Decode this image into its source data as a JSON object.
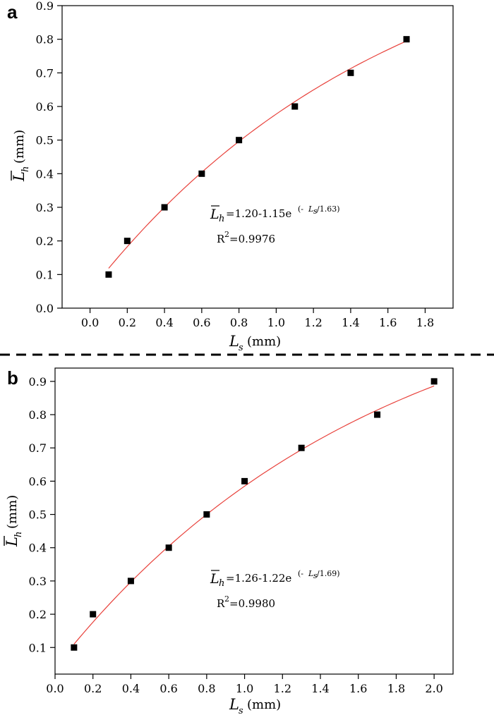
{
  "chart_data": [
    {
      "panel": "a",
      "type": "scatter",
      "x": [
        0.1,
        0.2,
        0.4,
        0.6,
        0.8,
        1.1,
        1.4,
        1.7
      ],
      "y": [
        0.1,
        0.2,
        0.3,
        0.4,
        0.5,
        0.6,
        0.7,
        0.8
      ],
      "fit": {
        "a": 1.2,
        "b": 1.15,
        "c": 1.63,
        "x_range": [
          0.1,
          1.7
        ],
        "color": "#e8403a"
      },
      "marker_color": "#000000",
      "xlim": [
        -0.15,
        1.95
      ],
      "ylim": [
        0.0,
        0.9
      ],
      "xticks": [
        "0.0",
        "0.2",
        "0.4",
        "0.6",
        "0.8",
        "1.0",
        "1.2",
        "1.4",
        "1.6",
        "1.8"
      ],
      "xtick_values": [
        0.0,
        0.2,
        0.4,
        0.6,
        0.8,
        1.0,
        1.2,
        1.4,
        1.6,
        1.8
      ],
      "yticks": [
        "0.0",
        "0.1",
        "0.2",
        "0.3",
        "0.4",
        "0.5",
        "0.6",
        "0.7",
        "0.8",
        "0.9"
      ],
      "ytick_values": [
        0.0,
        0.1,
        0.2,
        0.3,
        0.4,
        0.5,
        0.6,
        0.7,
        0.8,
        0.9
      ],
      "xlabel": {
        "symbol": "L",
        "sub": "s",
        "unit": "(mm)"
      },
      "ylabel": {
        "symbol": "L",
        "sub": "h",
        "unit": "(mm)"
      },
      "equation": {
        "symbol": "L",
        "sub": "h",
        "text": "=1.20-1.15e",
        "exp_open": "(-",
        "exp_symbol": "L",
        "exp_sub": "s",
        "exp_close": "/1.63)"
      },
      "r2": {
        "base": "R",
        "sup": "2",
        "value": "=0.9976"
      }
    },
    {
      "panel": "b",
      "type": "scatter",
      "x": [
        0.1,
        0.2,
        0.4,
        0.6,
        0.8,
        1.0,
        1.3,
        1.7,
        2.0
      ],
      "y": [
        0.1,
        0.2,
        0.3,
        0.4,
        0.5,
        0.6,
        0.7,
        0.8,
        0.9
      ],
      "fit": {
        "a": 1.26,
        "b": 1.22,
        "c": 1.69,
        "x_range": [
          0.1,
          2.0
        ],
        "color": "#e8403a"
      },
      "marker_color": "#000000",
      "xlim": [
        0.0,
        2.1
      ],
      "ylim": [
        0.02,
        0.94
      ],
      "xticks": [
        "0.0",
        "0.2",
        "0.4",
        "0.6",
        "0.8",
        "1.0",
        "1.2",
        "1.4",
        "1.6",
        "1.8",
        "2.0"
      ],
      "xtick_values": [
        0.0,
        0.2,
        0.4,
        0.6,
        0.8,
        1.0,
        1.2,
        1.4,
        1.6,
        1.8,
        2.0
      ],
      "yticks": [
        "0.1",
        "0.2",
        "0.3",
        "0.4",
        "0.5",
        "0.6",
        "0.7",
        "0.8",
        "0.9"
      ],
      "ytick_values": [
        0.1,
        0.2,
        0.3,
        0.4,
        0.5,
        0.6,
        0.7,
        0.8,
        0.9
      ],
      "xlabel": {
        "symbol": "L",
        "sub": "s",
        "unit": "(mm)"
      },
      "ylabel": {
        "symbol": "L",
        "sub": "h",
        "unit": "(mm)"
      },
      "equation": {
        "symbol": "L",
        "sub": "h",
        "text": "=1.26-1.22e",
        "exp_open": "(-",
        "exp_symbol": "L",
        "exp_sub": "s",
        "exp_close": "/1.69)"
      },
      "r2": {
        "base": "R",
        "sup": "2",
        "value": "=0.9980"
      }
    }
  ]
}
